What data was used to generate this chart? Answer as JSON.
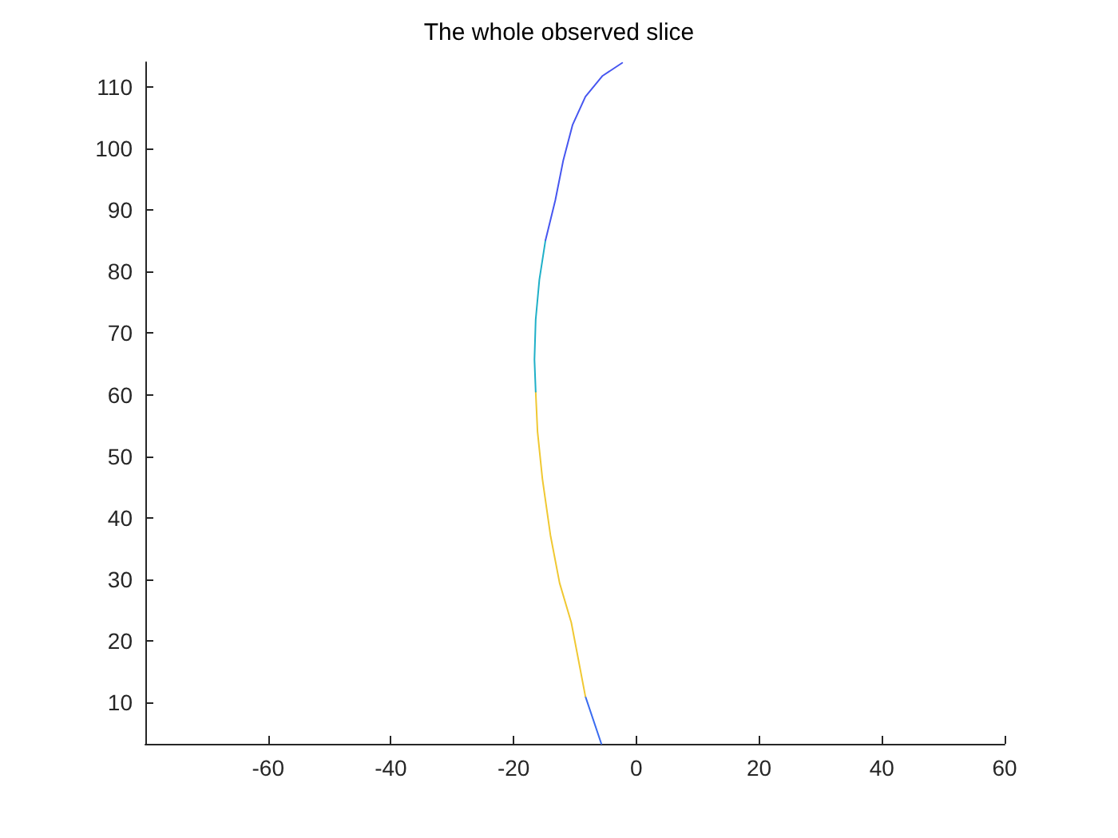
{
  "chart_data": {
    "type": "line",
    "title": "The whole observed slice",
    "series": [
      {
        "color": "#3a6cf0",
        "x": [
          -5.7,
          -8.3
        ],
        "values": [
          3.3,
          11.0
        ]
      },
      {
        "color": "#f0c832",
        "x": [
          -8.3,
          -9.6,
          -10.6,
          -12.5,
          -14.0,
          -15.3,
          -16.1,
          -16.4
        ],
        "values": [
          11.0,
          17.8,
          23.0,
          29.4,
          37.2,
          46.3,
          54.0,
          60.5
        ]
      },
      {
        "color": "#1fb0c8",
        "x": [
          -16.4,
          -16.6,
          -16.4,
          -15.8,
          -14.8
        ],
        "values": [
          60.5,
          65.7,
          72.2,
          78.7,
          85.1
        ]
      },
      {
        "color": "#4656f0",
        "x": [
          -14.8,
          -13.2,
          -11.9,
          -10.4,
          -8.3,
          -5.5,
          -2.3
        ],
        "values": [
          85.1,
          91.6,
          98.1,
          103.8,
          108.4,
          111.8,
          113.9
        ]
      }
    ],
    "xlim": [
      -80,
      60
    ],
    "xticks": [
      -60,
      -40,
      -20,
      0,
      20,
      40,
      60
    ],
    "ylim": [
      3.3,
      114
    ],
    "yticks": [
      10,
      20,
      30,
      40,
      50,
      60,
      70,
      80,
      90,
      100,
      110
    ],
    "grid": false,
    "marker": "none",
    "line_style": "solid"
  }
}
